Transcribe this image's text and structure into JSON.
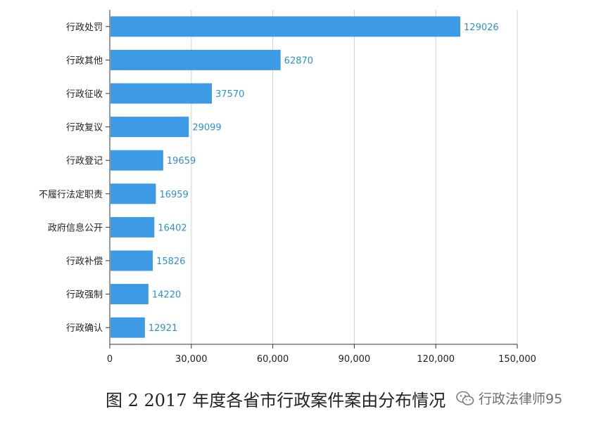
{
  "chart_data": {
    "type": "bar",
    "orientation": "horizontal",
    "categories": [
      "行政处罚",
      "行政其他",
      "行政征收",
      "行政复议",
      "行政登记",
      "不履行法定职责",
      "政府信息公开",
      "行政补偿",
      "行政强制",
      "行政确认"
    ],
    "values": [
      129026,
      62870,
      37570,
      29099,
      19659,
      16959,
      16402,
      15826,
      14220,
      12921
    ],
    "data_labels": [
      "129026",
      "62870",
      "37570",
      "29099",
      "19659",
      "16959",
      "16402",
      "15826",
      "14220",
      "12921"
    ],
    "xlim": [
      0,
      150000
    ],
    "xticks": [
      0,
      30000,
      60000,
      90000,
      120000,
      150000
    ],
    "xtick_labels": [
      "0",
      "30,000",
      "60,000",
      "90,000",
      "120,000",
      "150,000"
    ],
    "grid": "vertical",
    "bar_color": "#3d9ae4",
    "label_color": "#2e8fd6",
    "grid_color": "#cfcfcf"
  },
  "caption": "图 2  2017 年度各省市行政案件案由分布情况",
  "watermark": {
    "text": "行政法律师95",
    "icon": "wechat-icon"
  }
}
